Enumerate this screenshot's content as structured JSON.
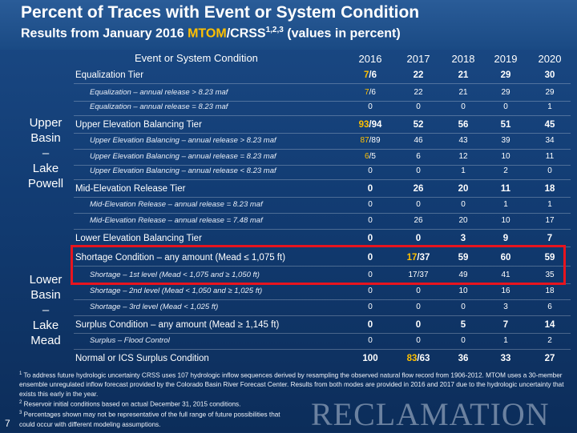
{
  "header": {
    "title": "Percent of Traces with Event or System Condition",
    "subtitle_prefix": "Results from January 2016 ",
    "subtitle_mtom": "MTOM",
    "subtitle_mid": "/CRSS",
    "subtitle_sup": "1,2,3",
    "subtitle_suffix": " (values in percent)"
  },
  "table": {
    "column_header": "Event or System Condition",
    "years": [
      "2016",
      "2017",
      "2018",
      "2019",
      "2020"
    ],
    "groups": {
      "upper": [
        "Upper",
        "Basin",
        "–",
        "Lake",
        "Powell"
      ],
      "lower": [
        "Lower",
        "Basin",
        "–",
        "Lake",
        "Mead"
      ]
    },
    "rows": [
      {
        "label": "Equalization Tier",
        "type": "major",
        "values": [
          "7/6",
          "22",
          "21",
          "29",
          "30"
        ],
        "first_amber": true
      },
      {
        "label": "Equalization – annual release > 8.23 maf",
        "type": "minor",
        "values": [
          "7/6",
          "22",
          "21",
          "29",
          "29"
        ],
        "first_amber": true
      },
      {
        "label": "Equalization – annual release = 8.23 maf",
        "type": "minor",
        "values": [
          "0",
          "0",
          "0",
          "0",
          "1"
        ]
      },
      {
        "label": "Upper Elevation Balancing Tier",
        "type": "major",
        "values": [
          "93/94",
          "52",
          "56",
          "51",
          "45"
        ],
        "first_amber": true
      },
      {
        "label": "Upper Elevation Balancing – annual release > 8.23 maf",
        "type": "minor",
        "values": [
          "87/89",
          "46",
          "43",
          "39",
          "34"
        ],
        "first_amber": true
      },
      {
        "label": "Upper Elevation Balancing – annual release = 8.23 maf",
        "type": "minor",
        "values": [
          "6/5",
          "6",
          "12",
          "10",
          "11"
        ],
        "first_amber": true
      },
      {
        "label": "Upper Elevation Balancing – annual release < 8.23 maf",
        "type": "minor",
        "values": [
          "0",
          "0",
          "1",
          "2",
          "0"
        ]
      },
      {
        "label": "Mid-Elevation Release Tier",
        "type": "major",
        "values": [
          "0",
          "26",
          "20",
          "11",
          "18"
        ]
      },
      {
        "label": "Mid-Elevation Release – annual release = 8.23 maf",
        "type": "minor",
        "values": [
          "0",
          "0",
          "0",
          "1",
          "1"
        ]
      },
      {
        "label": "Mid-Elevation Release – annual release = 7.48 maf",
        "type": "minor",
        "values": [
          "0",
          "26",
          "20",
          "10",
          "17"
        ]
      },
      {
        "label": "Lower Elevation Balancing Tier",
        "type": "major",
        "values": [
          "0",
          "0",
          "3",
          "9",
          "7"
        ]
      },
      {
        "label": "Shortage Condition – any amount (Mead ≤ 1,075 ft)",
        "type": "major",
        "values": [
          "0",
          "17/37",
          "59",
          "60",
          "59"
        ],
        "second_amber": true
      },
      {
        "label": "Shortage – 1st level (Mead < 1,075 and ≥ 1,050 ft)",
        "type": "minor",
        "values": [
          "0",
          "17/37",
          "49",
          "41",
          "35"
        ]
      },
      {
        "label": "Shortage – 2nd level (Mead < 1,050 and ≥ 1,025 ft)",
        "type": "minor",
        "values": [
          "0",
          "0",
          "10",
          "16",
          "18"
        ]
      },
      {
        "label": "Shortage – 3rd level (Mead < 1,025 ft)",
        "type": "minor",
        "values": [
          "0",
          "0",
          "0",
          "3",
          "6"
        ]
      },
      {
        "label": "Surplus Condition – any amount (Mead ≥ 1,145 ft)",
        "type": "major",
        "values": [
          "0",
          "0",
          "5",
          "7",
          "14"
        ]
      },
      {
        "label": "Surplus – Flood Control",
        "type": "minor",
        "values": [
          "0",
          "0",
          "0",
          "1",
          "2"
        ]
      },
      {
        "label": "Normal or ICS Surplus Condition",
        "type": "major",
        "values": [
          "100",
          "83/63",
          "36",
          "33",
          "27"
        ],
        "second_amber": true
      }
    ]
  },
  "footnotes": [
    {
      "sup": "1",
      "text": "To address future hydrologic uncertainty CRSS uses 107 hydrologic inflow sequences derived by resampling the observed natural flow record from 1906-2012. MTOM uses a 30-member ensemble unregulated inflow forecast provided by the Colorado Basin River Forecast Center. Results from both modes are provided in 2016 and 2017 due to the hydrologic uncertainty that exists this early in the year."
    },
    {
      "sup": "2",
      "text": "Reservoir initial conditions based on actual December 31, 2015 conditions."
    },
    {
      "sup": "3",
      "text": "Percentages shown may not be representative of the full range of future possibilities that could occur with different modeling assumptions."
    }
  ],
  "page_number": "7",
  "logo_text": "RECLAMATION",
  "colors": {
    "accent": "#ffc000",
    "highlight_box": "#e8141e",
    "background": "#123c73"
  }
}
